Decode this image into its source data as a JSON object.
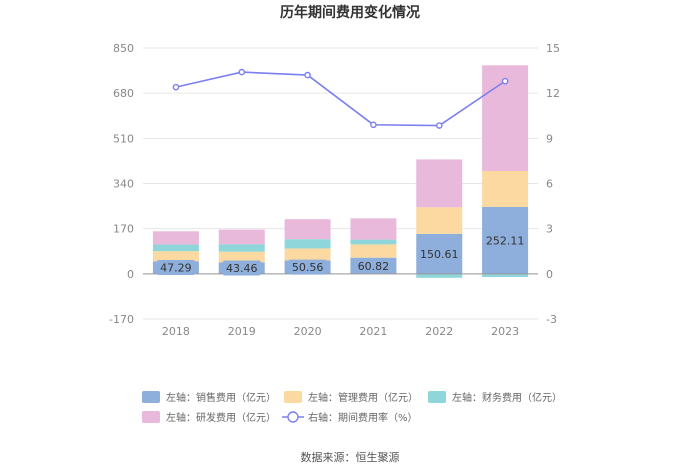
{
  "chart_data": {
    "type": "bar",
    "title": "历年期间费用变化情况",
    "categories": [
      "2018",
      "2019",
      "2020",
      "2021",
      "2022",
      "2023"
    ],
    "series": [
      {
        "name": "左轴：销售费用（亿元）",
        "kind": "bar",
        "axis": "left",
        "color": "#8eaedc",
        "values": [
          47.29,
          43.46,
          50.56,
          60.82,
          150.61,
          252.11
        ],
        "labels": [
          "47.29",
          "43.46",
          "50.56",
          "60.82",
          "150.61",
          "252.11"
        ]
      },
      {
        "name": "左轴：管理费用（亿元）",
        "kind": "bar",
        "axis": "left",
        "color": "#fbd9a0",
        "values": [
          38,
          40,
          45,
          50,
          100,
          135
        ]
      },
      {
        "name": "左轴：财务费用（亿元）",
        "kind": "bar",
        "axis": "left",
        "color": "#8fd6da",
        "values": [
          25,
          28,
          35,
          18,
          -15,
          -12
        ]
      },
      {
        "name": "左轴：研发费用（亿元）",
        "kind": "bar",
        "axis": "left",
        "color": "#e8b9da",
        "values": [
          50,
          55,
          75,
          80,
          180,
          398
        ]
      },
      {
        "name": "右轴：期间费用率（%）",
        "kind": "line",
        "axis": "right",
        "color": "#7b7ff0",
        "values": [
          12.4,
          13.4,
          13.2,
          9.9,
          9.85,
          12.8
        ]
      }
    ],
    "y_left": {
      "min": -170,
      "max": 850,
      "ticks": [
        -170,
        0,
        170,
        340,
        510,
        680,
        850
      ],
      "tick_labels": [
        "-170",
        "0",
        "170",
        "340",
        "510",
        "680",
        "850"
      ]
    },
    "y_right": {
      "min": -3,
      "max": 15,
      "ticks": [
        -3,
        0,
        3,
        6,
        9,
        12,
        15
      ],
      "tick_labels": [
        "-3",
        "0",
        "3",
        "6",
        "9",
        "12",
        "15"
      ]
    },
    "grid": true,
    "legend_position": "bottom"
  },
  "source_text": "数据来源：恒生聚源"
}
